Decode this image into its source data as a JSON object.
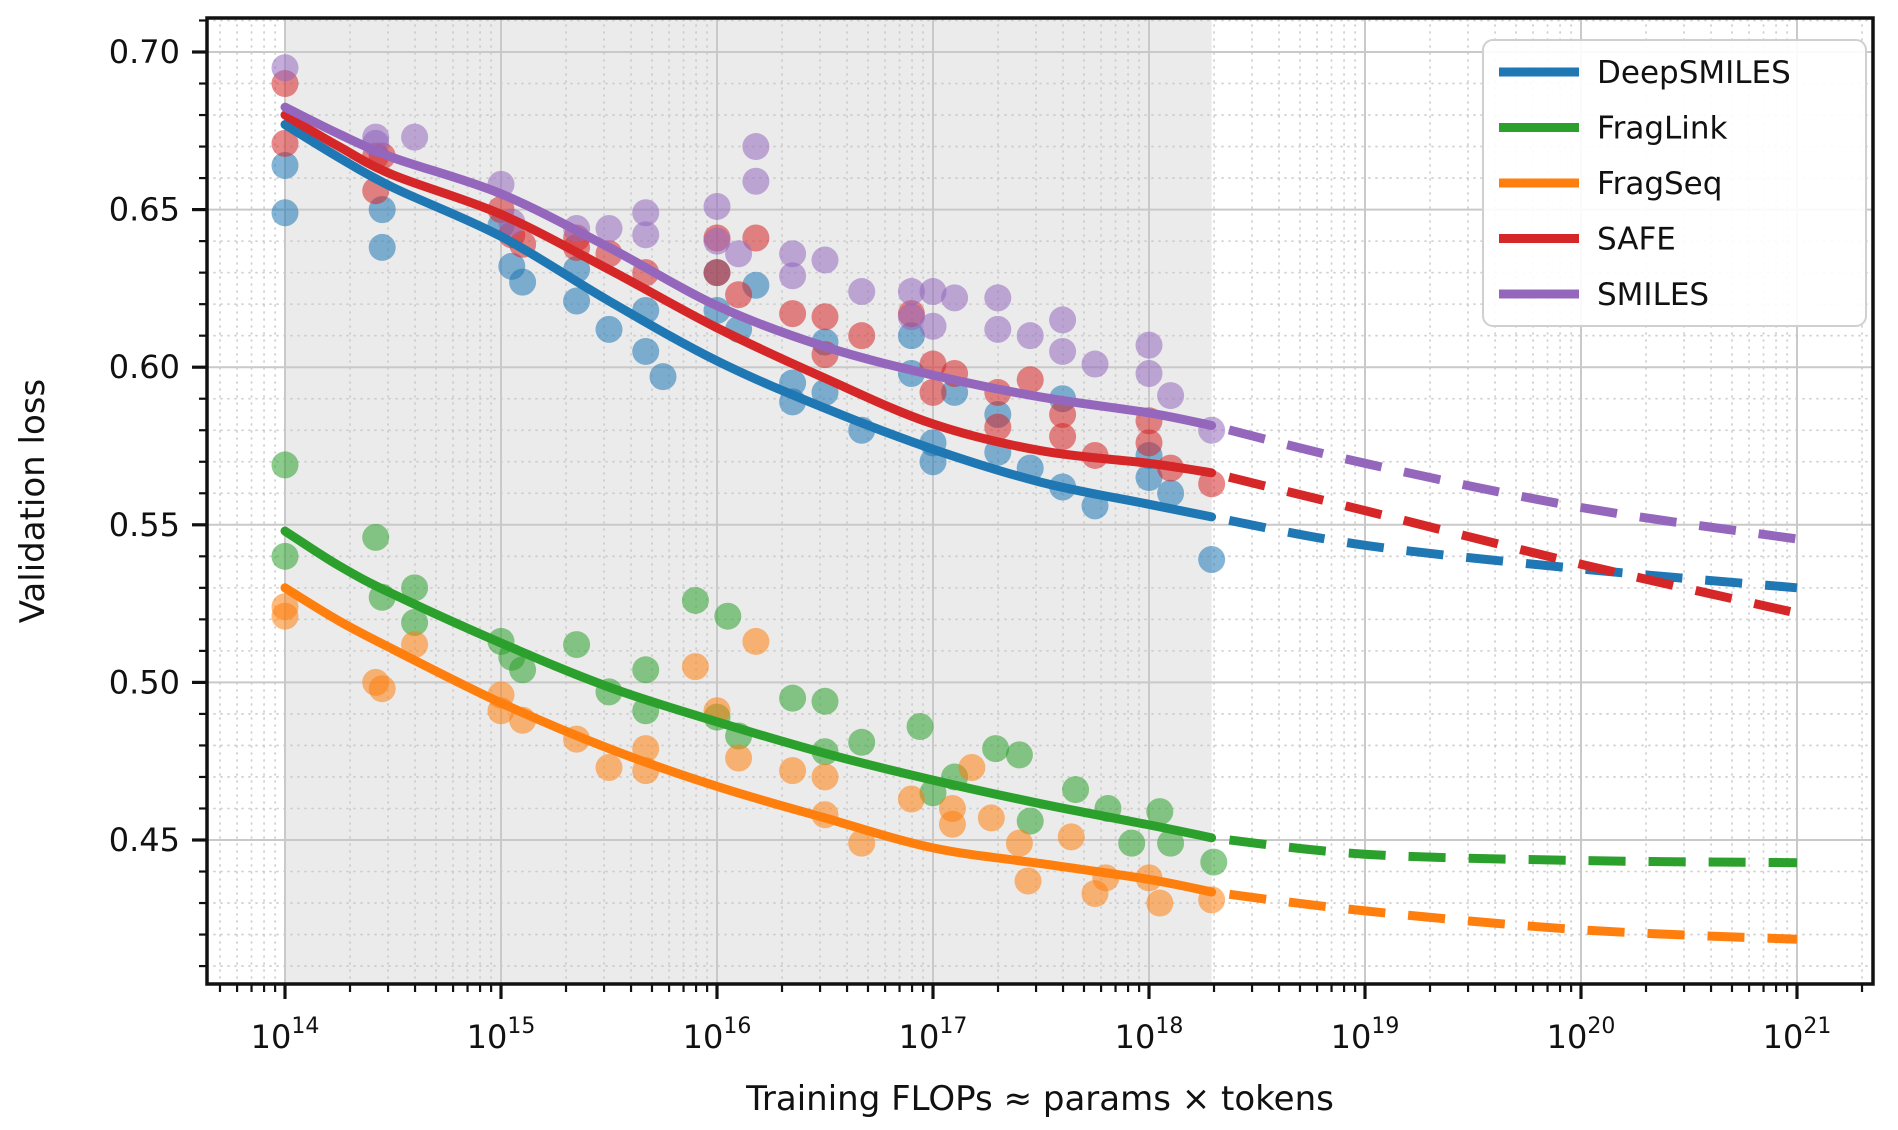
{
  "chart_data": {
    "type": "scatter+line",
    "title": "",
    "x_label": "Training FLOPs  ≈  params × tokens",
    "y_label": "Validation loss",
    "x_scale": "log10",
    "x_tick_exponents": [
      14,
      15,
      16,
      17,
      18,
      19,
      20,
      21
    ],
    "x_range_log10": [
      13.64,
      21.35
    ],
    "y_ticks": [
      0.45,
      0.5,
      0.55,
      0.6,
      0.65,
      0.7
    ],
    "y_minor_step": 0.01,
    "y_range": [
      0.403,
      0.711
    ],
    "grid": "major-solid, minor-dotted",
    "shaded_region_log10_flops": [
      14.0,
      18.29
    ],
    "shaded_region_color": "#ebebeb",
    "extrapolation_style": "dashed",
    "legend": {
      "position": "upper right",
      "entries": [
        "DeepSMILES",
        "FragLink",
        "FragSeq",
        "SAFE",
        "SMILES"
      ]
    },
    "series": [
      {
        "name": "DeepSMILES",
        "color": "#1f77b4",
        "fit_solid": [
          [
            14,
            0.677
          ],
          [
            14.25,
            0.6665
          ],
          [
            14.5,
            0.657
          ],
          [
            15,
            0.6415
          ],
          [
            15.5,
            0.621
          ],
          [
            16,
            0.602
          ],
          [
            16.5,
            0.587
          ],
          [
            17,
            0.574
          ],
          [
            17.5,
            0.5635
          ],
          [
            18,
            0.5565
          ],
          [
            18.29,
            0.5525
          ]
        ],
        "fit_dashed": [
          [
            18.29,
            0.5525
          ],
          [
            19,
            0.5435
          ],
          [
            20,
            0.536
          ],
          [
            21,
            0.53
          ]
        ],
        "scatter": [
          [
            14.0,
            0.664
          ],
          [
            14.0,
            0.649
          ],
          [
            14.45,
            0.65
          ],
          [
            14.45,
            0.638
          ],
          [
            15.0,
            0.645
          ],
          [
            15.05,
            0.632
          ],
          [
            15.1,
            0.627
          ],
          [
            15.35,
            0.631
          ],
          [
            15.35,
            0.621
          ],
          [
            15.5,
            0.612
          ],
          [
            15.67,
            0.618
          ],
          [
            15.67,
            0.605
          ],
          [
            15.75,
            0.597
          ],
          [
            16.0,
            0.63
          ],
          [
            16.0,
            0.618
          ],
          [
            16.1,
            0.612
          ],
          [
            16.18,
            0.626
          ],
          [
            16.35,
            0.595
          ],
          [
            16.35,
            0.589
          ],
          [
            16.5,
            0.608
          ],
          [
            16.5,
            0.592
          ],
          [
            16.67,
            0.58
          ],
          [
            16.9,
            0.61
          ],
          [
            16.9,
            0.598
          ],
          [
            17.0,
            0.576
          ],
          [
            17.0,
            0.57
          ],
          [
            17.1,
            0.592
          ],
          [
            17.3,
            0.585
          ],
          [
            17.3,
            0.573
          ],
          [
            17.45,
            0.568
          ],
          [
            17.6,
            0.59
          ],
          [
            17.6,
            0.562
          ],
          [
            17.75,
            0.556
          ],
          [
            18.0,
            0.572
          ],
          [
            18.0,
            0.565
          ],
          [
            18.1,
            0.56
          ],
          [
            18.29,
            0.539
          ]
        ]
      },
      {
        "name": "FragLink",
        "color": "#2ca02c",
        "fit_solid": [
          [
            14,
            0.548
          ],
          [
            14.25,
            0.537
          ],
          [
            14.5,
            0.528
          ],
          [
            15,
            0.5125
          ],
          [
            15.5,
            0.4985
          ],
          [
            16,
            0.4875
          ],
          [
            16.5,
            0.4775
          ],
          [
            17,
            0.469
          ],
          [
            17.5,
            0.4615
          ],
          [
            18,
            0.4548
          ],
          [
            18.29,
            0.4507
          ]
        ],
        "fit_dashed": [
          [
            18.29,
            0.4507
          ],
          [
            19,
            0.4455
          ],
          [
            20,
            0.4435
          ],
          [
            21,
            0.4428
          ]
        ],
        "scatter": [
          [
            14.0,
            0.569
          ],
          [
            14.0,
            0.54
          ],
          [
            14.42,
            0.546
          ],
          [
            14.45,
            0.527
          ],
          [
            14.6,
            0.53
          ],
          [
            14.6,
            0.519
          ],
          [
            15.0,
            0.513
          ],
          [
            15.05,
            0.508
          ],
          [
            15.1,
            0.504
          ],
          [
            15.35,
            0.512
          ],
          [
            15.5,
            0.497
          ],
          [
            15.67,
            0.504
          ],
          [
            15.67,
            0.491
          ],
          [
            15.9,
            0.526
          ],
          [
            16.0,
            0.489
          ],
          [
            16.05,
            0.521
          ],
          [
            16.1,
            0.483
          ],
          [
            16.35,
            0.495
          ],
          [
            16.5,
            0.494
          ],
          [
            16.5,
            0.478
          ],
          [
            16.67,
            0.481
          ],
          [
            16.94,
            0.486
          ],
          [
            17.0,
            0.465
          ],
          [
            17.1,
            0.47
          ],
          [
            17.29,
            0.479
          ],
          [
            17.4,
            0.477
          ],
          [
            17.45,
            0.456
          ],
          [
            17.66,
            0.466
          ],
          [
            17.81,
            0.46
          ],
          [
            17.92,
            0.449
          ],
          [
            18.05,
            0.459
          ],
          [
            18.1,
            0.449
          ],
          [
            18.3,
            0.443
          ]
        ]
      },
      {
        "name": "FragSeq",
        "color": "#ff7f0e",
        "fit_solid": [
          [
            14,
            0.53
          ],
          [
            14.25,
            0.5195
          ],
          [
            14.5,
            0.5105
          ],
          [
            15,
            0.4935
          ],
          [
            15.5,
            0.479
          ],
          [
            16,
            0.467
          ],
          [
            16.5,
            0.457
          ],
          [
            17,
            0.4475
          ],
          [
            17.5,
            0.4425
          ],
          [
            18,
            0.4375
          ],
          [
            18.29,
            0.4335
          ]
        ],
        "fit_dashed": [
          [
            18.29,
            0.4335
          ],
          [
            19,
            0.4275
          ],
          [
            20,
            0.4215
          ],
          [
            21,
            0.4185
          ]
        ],
        "scatter": [
          [
            14.0,
            0.524
          ],
          [
            14.0,
            0.521
          ],
          [
            14.42,
            0.5
          ],
          [
            14.45,
            0.498
          ],
          [
            14.6,
            0.512
          ],
          [
            15.0,
            0.496
          ],
          [
            15.0,
            0.491
          ],
          [
            15.1,
            0.488
          ],
          [
            15.35,
            0.482
          ],
          [
            15.5,
            0.473
          ],
          [
            15.67,
            0.479
          ],
          [
            15.67,
            0.472
          ],
          [
            15.9,
            0.505
          ],
          [
            16.0,
            0.491
          ],
          [
            16.1,
            0.476
          ],
          [
            16.18,
            0.513
          ],
          [
            16.35,
            0.472
          ],
          [
            16.5,
            0.47
          ],
          [
            16.5,
            0.458
          ],
          [
            16.67,
            0.449
          ],
          [
            16.9,
            0.463
          ],
          [
            17.09,
            0.46
          ],
          [
            17.09,
            0.455
          ],
          [
            17.18,
            0.473
          ],
          [
            17.27,
            0.457
          ],
          [
            17.4,
            0.449
          ],
          [
            17.44,
            0.437
          ],
          [
            17.64,
            0.451
          ],
          [
            17.8,
            0.438
          ],
          [
            17.75,
            0.433
          ],
          [
            18.0,
            0.438
          ],
          [
            18.05,
            0.43
          ],
          [
            18.29,
            0.431
          ]
        ]
      },
      {
        "name": "SAFE",
        "color": "#d62728",
        "fit_solid": [
          [
            14,
            0.68
          ],
          [
            14.25,
            0.67
          ],
          [
            14.5,
            0.661
          ],
          [
            15,
            0.6485
          ],
          [
            15.5,
            0.631
          ],
          [
            16,
            0.6125
          ],
          [
            16.5,
            0.5965
          ],
          [
            17,
            0.582
          ],
          [
            17.5,
            0.5735
          ],
          [
            18,
            0.5695
          ],
          [
            18.29,
            0.5665
          ]
        ],
        "fit_dashed": [
          [
            18.29,
            0.5665
          ],
          [
            19,
            0.5545
          ],
          [
            20,
            0.5375
          ],
          [
            21,
            0.522
          ]
        ],
        "scatter": [
          [
            14.0,
            0.69
          ],
          [
            14.0,
            0.671
          ],
          [
            14.42,
            0.667
          ],
          [
            14.45,
            0.667
          ],
          [
            14.42,
            0.656
          ],
          [
            15.0,
            0.65
          ],
          [
            15.05,
            0.642
          ],
          [
            15.1,
            0.639
          ],
          [
            15.35,
            0.641
          ],
          [
            15.35,
            0.638
          ],
          [
            15.5,
            0.636
          ],
          [
            15.67,
            0.63
          ],
          [
            16.0,
            0.641
          ],
          [
            16.0,
            0.63
          ],
          [
            16.1,
            0.623
          ],
          [
            16.18,
            0.641
          ],
          [
            16.35,
            0.617
          ],
          [
            16.5,
            0.616
          ],
          [
            16.5,
            0.604
          ],
          [
            16.67,
            0.61
          ],
          [
            16.9,
            0.617
          ],
          [
            17.0,
            0.601
          ],
          [
            17.0,
            0.592
          ],
          [
            17.1,
            0.598
          ],
          [
            17.3,
            0.592
          ],
          [
            17.3,
            0.581
          ],
          [
            17.45,
            0.596
          ],
          [
            17.6,
            0.585
          ],
          [
            17.6,
            0.578
          ],
          [
            17.75,
            0.572
          ],
          [
            18.0,
            0.583
          ],
          [
            18.0,
            0.576
          ],
          [
            18.1,
            0.568
          ],
          [
            18.29,
            0.563
          ]
        ]
      },
      {
        "name": "SMILES",
        "color": "#9467bd",
        "fit_solid": [
          [
            14,
            0.6825
          ],
          [
            14.25,
            0.674
          ],
          [
            14.5,
            0.6665
          ],
          [
            15,
            0.655
          ],
          [
            15.5,
            0.638
          ],
          [
            16,
            0.6195
          ],
          [
            16.5,
            0.6065
          ],
          [
            17,
            0.5975
          ],
          [
            17.5,
            0.5905
          ],
          [
            18,
            0.5855
          ],
          [
            18.29,
            0.5815
          ]
        ],
        "fit_dashed": [
          [
            18.29,
            0.5815
          ],
          [
            19,
            0.5695
          ],
          [
            20,
            0.5555
          ],
          [
            21,
            0.5455
          ]
        ],
        "scatter": [
          [
            14.0,
            0.695
          ],
          [
            14.42,
            0.673
          ],
          [
            14.42,
            0.671
          ],
          [
            14.6,
            0.673
          ],
          [
            15.0,
            0.658
          ],
          [
            15.05,
            0.646
          ],
          [
            15.35,
            0.644
          ],
          [
            15.5,
            0.644
          ],
          [
            15.67,
            0.649
          ],
          [
            15.67,
            0.642
          ],
          [
            16.0,
            0.651
          ],
          [
            16.0,
            0.64
          ],
          [
            16.1,
            0.636
          ],
          [
            16.18,
            0.67
          ],
          [
            16.18,
            0.659
          ],
          [
            16.35,
            0.636
          ],
          [
            16.35,
            0.629
          ],
          [
            16.5,
            0.634
          ],
          [
            16.67,
            0.624
          ],
          [
            16.9,
            0.624
          ],
          [
            16.9,
            0.616
          ],
          [
            17.0,
            0.624
          ],
          [
            17.0,
            0.613
          ],
          [
            17.1,
            0.622
          ],
          [
            17.3,
            0.622
          ],
          [
            17.3,
            0.612
          ],
          [
            17.45,
            0.61
          ],
          [
            17.6,
            0.615
          ],
          [
            17.6,
            0.605
          ],
          [
            17.75,
            0.601
          ],
          [
            18.0,
            0.607
          ],
          [
            18.0,
            0.598
          ],
          [
            18.1,
            0.591
          ],
          [
            18.29,
            0.58
          ]
        ]
      }
    ],
    "style": {
      "scatter_alpha": 0.55,
      "scatter_radius": 13.5,
      "line_width": 9,
      "dash_pattern": "37 23",
      "major_grid_color": "#c9c9c9",
      "minor_grid_color": "#c7c7c7",
      "spine_color": "#111111",
      "legend_border_color": "#d0d0d0"
    }
  }
}
